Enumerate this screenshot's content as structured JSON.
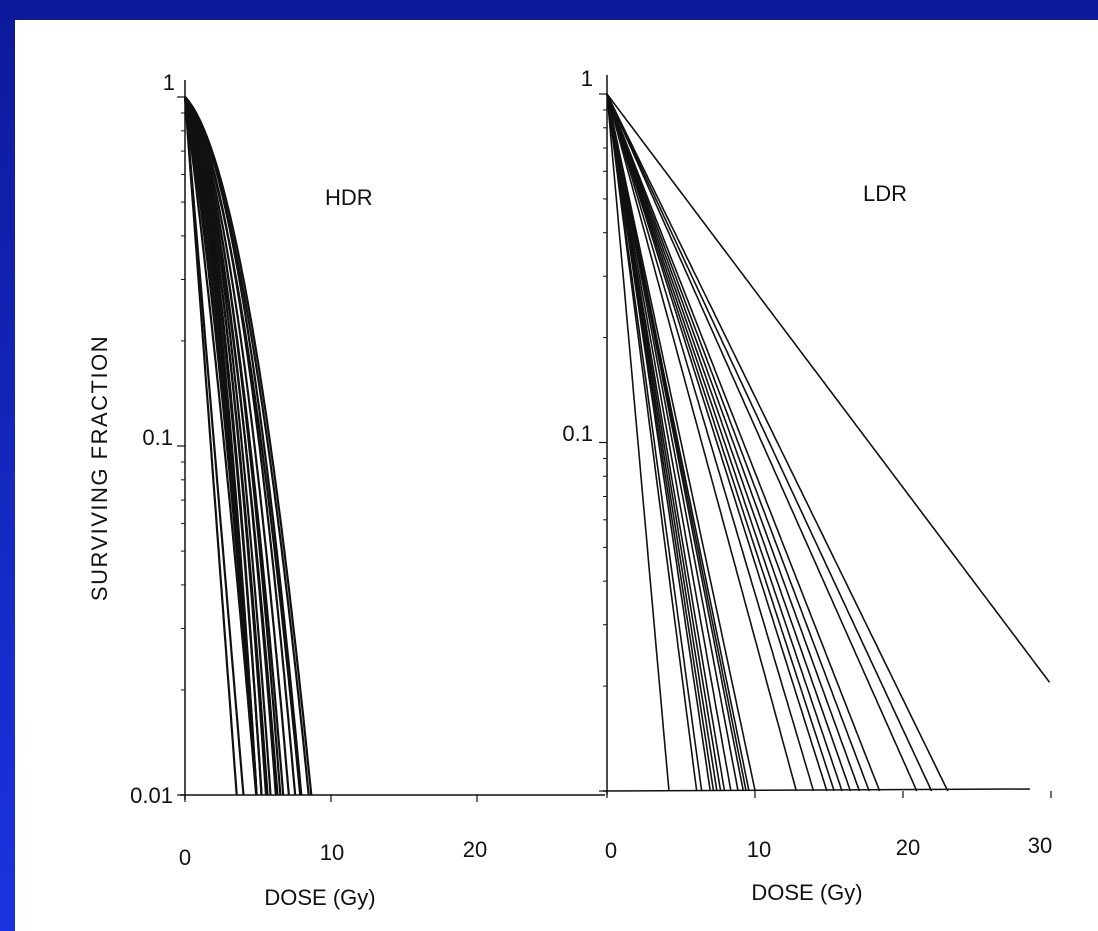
{
  "colors": {
    "background": "#1a33e0",
    "panel": "#ffffff",
    "ink": "#111111"
  },
  "chart_data": [
    {
      "type": "line",
      "panel": "HDR",
      "title": "",
      "annotation": "HDR",
      "xlabel": "DOSE (Gy)",
      "ylabel": "SURVIVING FRACTION",
      "xlim": [
        0,
        28
      ],
      "ylim": [
        0.01,
        1
      ],
      "yscale": "log",
      "xticks": [
        "0",
        "10",
        "20"
      ],
      "yticks": [
        "1",
        "0.1",
        "0.01"
      ],
      "grid": false,
      "legend": "none",
      "curve_model": "S = exp(-alpha*D - beta*D^2)",
      "series": [
        {
          "alpha": 1.3,
          "beta": 0.0
        },
        {
          "alpha": 1.15,
          "beta": 0.0
        },
        {
          "alpha": 0.75,
          "beta": 0.04
        },
        {
          "alpha": 0.6,
          "beta": 0.07
        },
        {
          "alpha": 0.5,
          "beta": 0.09
        },
        {
          "alpha": 0.4,
          "beta": 0.11
        },
        {
          "alpha": 0.35,
          "beta": 0.12
        },
        {
          "alpha": 0.3,
          "beta": 0.13
        },
        {
          "alpha": 0.3,
          "beta": 0.11
        },
        {
          "alpha": 0.25,
          "beta": 0.12
        },
        {
          "alpha": 0.22,
          "beta": 0.11
        },
        {
          "alpha": 0.25,
          "beta": 0.1
        },
        {
          "alpha": 0.2,
          "beta": 0.1
        },
        {
          "alpha": 0.18,
          "beta": 0.09
        },
        {
          "alpha": 0.15,
          "beta": 0.085
        },
        {
          "alpha": 0.22,
          "beta": 0.08
        },
        {
          "alpha": 0.18,
          "beta": 0.075
        },
        {
          "alpha": 0.15,
          "beta": 0.07
        },
        {
          "alpha": 0.12,
          "beta": 0.065
        },
        {
          "alpha": 0.1,
          "beta": 0.06
        },
        {
          "alpha": 0.15,
          "beta": 0.055
        },
        {
          "alpha": 0.12,
          "beta": 0.05
        },
        {
          "alpha": 0.1,
          "beta": 0.05
        }
      ]
    },
    {
      "type": "line",
      "panel": "LDR",
      "title": "",
      "annotation": "LDR",
      "xlabel": "DOSE (Gy)",
      "ylabel": "",
      "xlim": [
        0,
        30
      ],
      "ylim": [
        0.01,
        1
      ],
      "yscale": "log",
      "xticks": [
        "0",
        "10",
        "20",
        "30"
      ],
      "yticks": [
        "1",
        "0.1"
      ],
      "grid": false,
      "legend": "none",
      "curve_model": "S = exp(-alpha*D)",
      "series": [
        {
          "alpha": 1.1
        },
        {
          "alpha": 0.76
        },
        {
          "alpha": 0.72
        },
        {
          "alpha": 0.66
        },
        {
          "alpha": 0.64
        },
        {
          "alpha": 0.62
        },
        {
          "alpha": 0.6
        },
        {
          "alpha": 0.58
        },
        {
          "alpha": 0.55
        },
        {
          "alpha": 0.52
        },
        {
          "alpha": 0.5
        },
        {
          "alpha": 0.49
        },
        {
          "alpha": 0.48
        },
        {
          "alpha": 0.46
        },
        {
          "alpha": 0.36
        },
        {
          "alpha": 0.33
        },
        {
          "alpha": 0.31
        },
        {
          "alpha": 0.3
        },
        {
          "alpha": 0.29
        },
        {
          "alpha": 0.28
        },
        {
          "alpha": 0.27
        },
        {
          "alpha": 0.26
        },
        {
          "alpha": 0.25
        },
        {
          "alpha": 0.22
        },
        {
          "alpha": 0.21
        },
        {
          "alpha": 0.2
        },
        {
          "alpha": 0.13
        }
      ]
    }
  ]
}
